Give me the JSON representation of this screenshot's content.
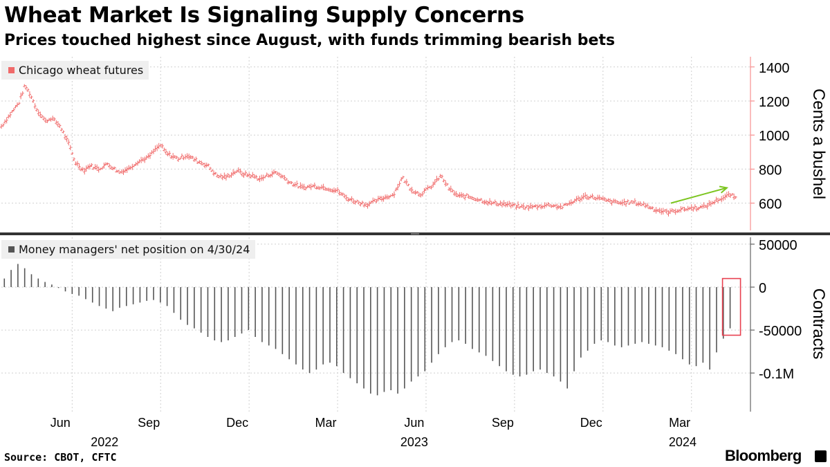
{
  "title": "Wheat Market Is Signaling Supply Concerns",
  "subtitle": "Prices touched highest since August, with funds trimming bearish bets",
  "source": "Source: CBOT, CFTC",
  "brand": "Bloomberg",
  "colors": {
    "price": "#f06a6a",
    "price_axis": "#f47a7a",
    "position": "#555555",
    "arrow": "#7cc520",
    "highlight": "#e8404f",
    "grid": "#cfcfcf"
  },
  "chart_data": [
    {
      "type": "line",
      "style": "ohlc",
      "title": "Chicago wheat futures",
      "legend": "Chicago wheat futures",
      "ylabel": "Cents a bushel",
      "yticks": [
        600,
        800,
        1000,
        1200,
        1400
      ],
      "ytick_labels": [
        "600",
        "800",
        "1000",
        "1200",
        "1400"
      ],
      "ylim": [
        440,
        1460
      ],
      "x_unit": "month index from Apr 2022 (0 = Apr 1, 2022)",
      "xlim": [
        0,
        25.4
      ],
      "series": [
        {
          "name": "Chicago wheat futures",
          "points": [
            [
              0,
              1050
            ],
            [
              0.3,
              1120
            ],
            [
              0.6,
              1190
            ],
            [
              0.8,
              1290
            ],
            [
              1.0,
              1230
            ],
            [
              1.2,
              1150
            ],
            [
              1.5,
              1080
            ],
            [
              1.7,
              1100
            ],
            [
              2.0,
              1050
            ],
            [
              2.3,
              940
            ],
            [
              2.5,
              840
            ],
            [
              2.8,
              790
            ],
            [
              3.0,
              820
            ],
            [
              3.3,
              800
            ],
            [
              3.6,
              830
            ],
            [
              4.0,
              780
            ],
            [
              4.3,
              800
            ],
            [
              4.6,
              840
            ],
            [
              5.0,
              870
            ],
            [
              5.2,
              910
            ],
            [
              5.4,
              940
            ],
            [
              5.6,
              890
            ],
            [
              6.0,
              860
            ],
            [
              6.3,
              880
            ],
            [
              6.6,
              850
            ],
            [
              7.0,
              820
            ],
            [
              7.3,
              760
            ],
            [
              7.6,
              750
            ],
            [
              8.0,
              790
            ],
            [
              8.2,
              770
            ],
            [
              8.5,
              760
            ],
            [
              8.8,
              740
            ],
            [
              9.0,
              760
            ],
            [
              9.3,
              780
            ],
            [
              9.5,
              760
            ],
            [
              9.8,
              720
            ],
            [
              10.2,
              690
            ],
            [
              10.6,
              700
            ],
            [
              11.0,
              690
            ],
            [
              11.4,
              670
            ],
            [
              11.7,
              630
            ],
            [
              12.0,
              610
            ],
            [
              12.4,
              590
            ],
            [
              12.8,
              620
            ],
            [
              13.3,
              650
            ],
            [
              13.6,
              750
            ],
            [
              13.9,
              680
            ],
            [
              14.2,
              650
            ],
            [
              14.6,
              700
            ],
            [
              14.9,
              760
            ],
            [
              15.2,
              680
            ],
            [
              15.5,
              640
            ],
            [
              15.8,
              640
            ],
            [
              16.2,
              620
            ],
            [
              16.6,
              600
            ],
            [
              17.0,
              595
            ],
            [
              17.5,
              580
            ],
            [
              17.8,
              575
            ],
            [
              18.2,
              580
            ],
            [
              18.6,
              590
            ],
            [
              19.0,
              575
            ],
            [
              19.4,
              610
            ],
            [
              19.8,
              640
            ],
            [
              20.2,
              630
            ],
            [
              20.6,
              610
            ],
            [
              21.0,
              600
            ],
            [
              21.4,
              605
            ],
            [
              21.8,
              590
            ],
            [
              22.2,
              560
            ],
            [
              22.6,
              545
            ],
            [
              23.0,
              560
            ],
            [
              23.4,
              570
            ],
            [
              23.8,
              575
            ],
            [
              24.1,
              600
            ],
            [
              24.3,
              620
            ],
            [
              24.5,
              630
            ],
            [
              24.7,
              650
            ],
            [
              24.9,
              630
            ]
          ]
        }
      ],
      "annotation": "trend-up-arrow"
    },
    {
      "type": "bar",
      "title": "Money managers' net position on 4/30/24",
      "legend": "Money managers' net position on 4/30/24",
      "ylabel": "Contracts",
      "yticks": [
        50000,
        0,
        -50000,
        -100000
      ],
      "ytick_labels": [
        "50000",
        "0",
        "-50000",
        "-0.1M"
      ],
      "ylim": [
        -145000,
        58000
      ],
      "x_unit": "month index from Apr 2022 (0 = Apr 1, 2022)",
      "xlim": [
        0,
        25.4
      ],
      "weeks": 108,
      "week_start_x": 0.1,
      "week_step_x": 0.23,
      "values": [
        10000,
        20000,
        27000,
        22000,
        15000,
        10000,
        6000,
        3000,
        -1000,
        -5000,
        -8000,
        -10000,
        -14000,
        -18000,
        -22000,
        -25000,
        -28000,
        -24000,
        -22000,
        -20000,
        -18000,
        -16000,
        -15000,
        -18000,
        -22000,
        -30000,
        -38000,
        -44000,
        -48000,
        -53000,
        -58000,
        -62000,
        -64000,
        -62000,
        -58000,
        -54000,
        -50000,
        -58000,
        -64000,
        -68000,
        -72000,
        -78000,
        -84000,
        -90000,
        -96000,
        -100000,
        -96000,
        -90000,
        -88000,
        -92000,
        -100000,
        -106000,
        -112000,
        -118000,
        -124000,
        -126000,
        -122000,
        -120000,
        -124000,
        -118000,
        -110000,
        -104000,
        -98000,
        -88000,
        -78000,
        -70000,
        -64000,
        -62000,
        -66000,
        -72000,
        -76000,
        -80000,
        -86000,
        -92000,
        -98000,
        -102000,
        -104000,
        -102000,
        -98000,
        -96000,
        -100000,
        -104000,
        -110000,
        -118000,
        -98000,
        -82000,
        -74000,
        -66000,
        -62000,
        -64000,
        -68000,
        -70000,
        -68000,
        -66000,
        -64000,
        -66000,
        -68000,
        -70000,
        -74000,
        -78000,
        -84000,
        -90000,
        -92000,
        -88000,
        -96000,
        -76000,
        -60000,
        -48000
      ],
      "highlight": "latest-week"
    }
  ],
  "x_axis": {
    "month_labels": [
      "Jun",
      "Sep",
      "Dec",
      "Mar",
      "Jun",
      "Sep",
      "Dec",
      "Mar"
    ],
    "month_positions": [
      2,
      5,
      8,
      11,
      14,
      17,
      20,
      23
    ],
    "year_labels": [
      "2022",
      "2023",
      "2024"
    ],
    "year_positions": [
      3.5,
      14.0,
      23.1
    ],
    "gridlines": [
      2.4,
      5.4,
      8.4,
      11.4,
      14.4,
      17.4,
      20.4,
      23.4
    ]
  }
}
